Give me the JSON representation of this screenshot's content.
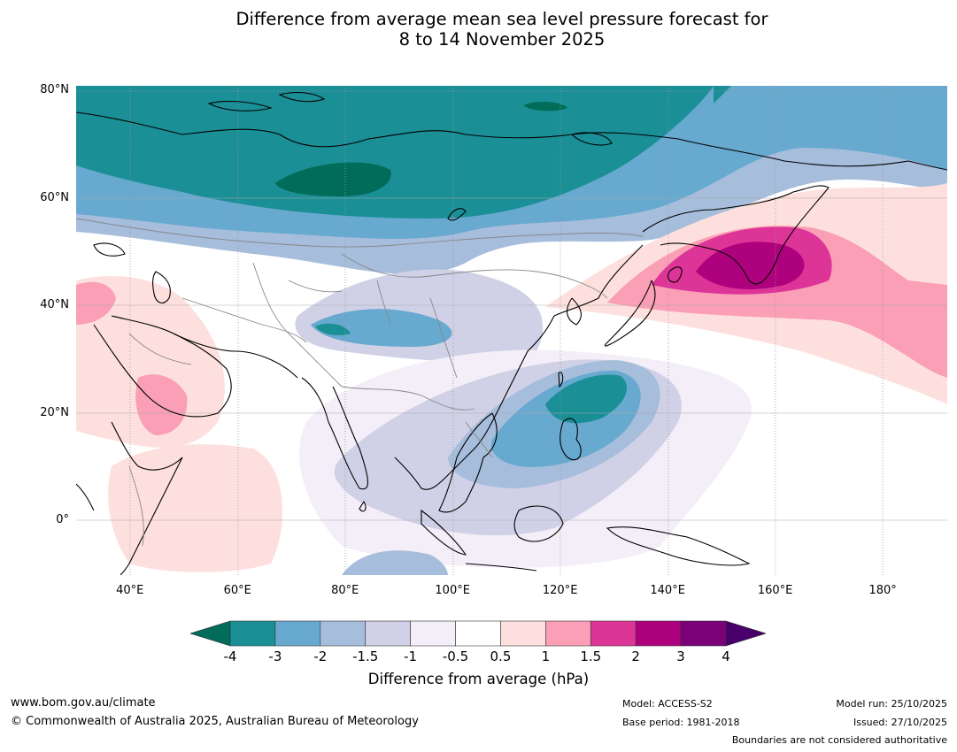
{
  "title": {
    "line1": "Difference from average mean sea level pressure forecast for",
    "line2": "8 to 14 November 2025"
  },
  "map": {
    "lat_labels": [
      "80°N",
      "60°N",
      "40°N",
      "20°N",
      "0°"
    ],
    "lon_labels": [
      "40°E",
      "60°E",
      "80°E",
      "100°E",
      "120°E",
      "140°E",
      "160°E",
      "180°"
    ],
    "lat_values": [
      80,
      60,
      40,
      20,
      0
    ],
    "lon_values": [
      40,
      60,
      80,
      100,
      120,
      140,
      160,
      180
    ],
    "lon_range": [
      30,
      192
    ],
    "lat_range": [
      -10,
      81
    ]
  },
  "colorbar": {
    "ticks": [
      "-4",
      "-3",
      "-2",
      "-1.5",
      "-1",
      "-0.5",
      "0.5",
      "1",
      "1.5",
      "2",
      "3",
      "4"
    ],
    "colors": [
      "#1a8f96",
      "#67a9cf",
      "#a6bddb",
      "#d0d1e6",
      "#f3eef7",
      "#ffffff",
      "#fde0dd",
      "#fa9fb5",
      "#dd3497",
      "#ae017e",
      "#7a0177"
    ],
    "extend_low_color": "#016c59",
    "extend_high_color": "#49006a",
    "label": "Difference from average (hPa)"
  },
  "footer": {
    "website": "www.bom.gov.au/climate",
    "copyright": "© Commonwealth of Australia 2025, Australian Bureau of Meteorology",
    "model": "Model: ACCESS-S2",
    "base_period": "Base period: 1981-2018",
    "model_run": "Model run: 25/10/2025",
    "issued": "Issued: 27/10/2025",
    "disclaimer": "Boundaries are not considered authoritative"
  }
}
